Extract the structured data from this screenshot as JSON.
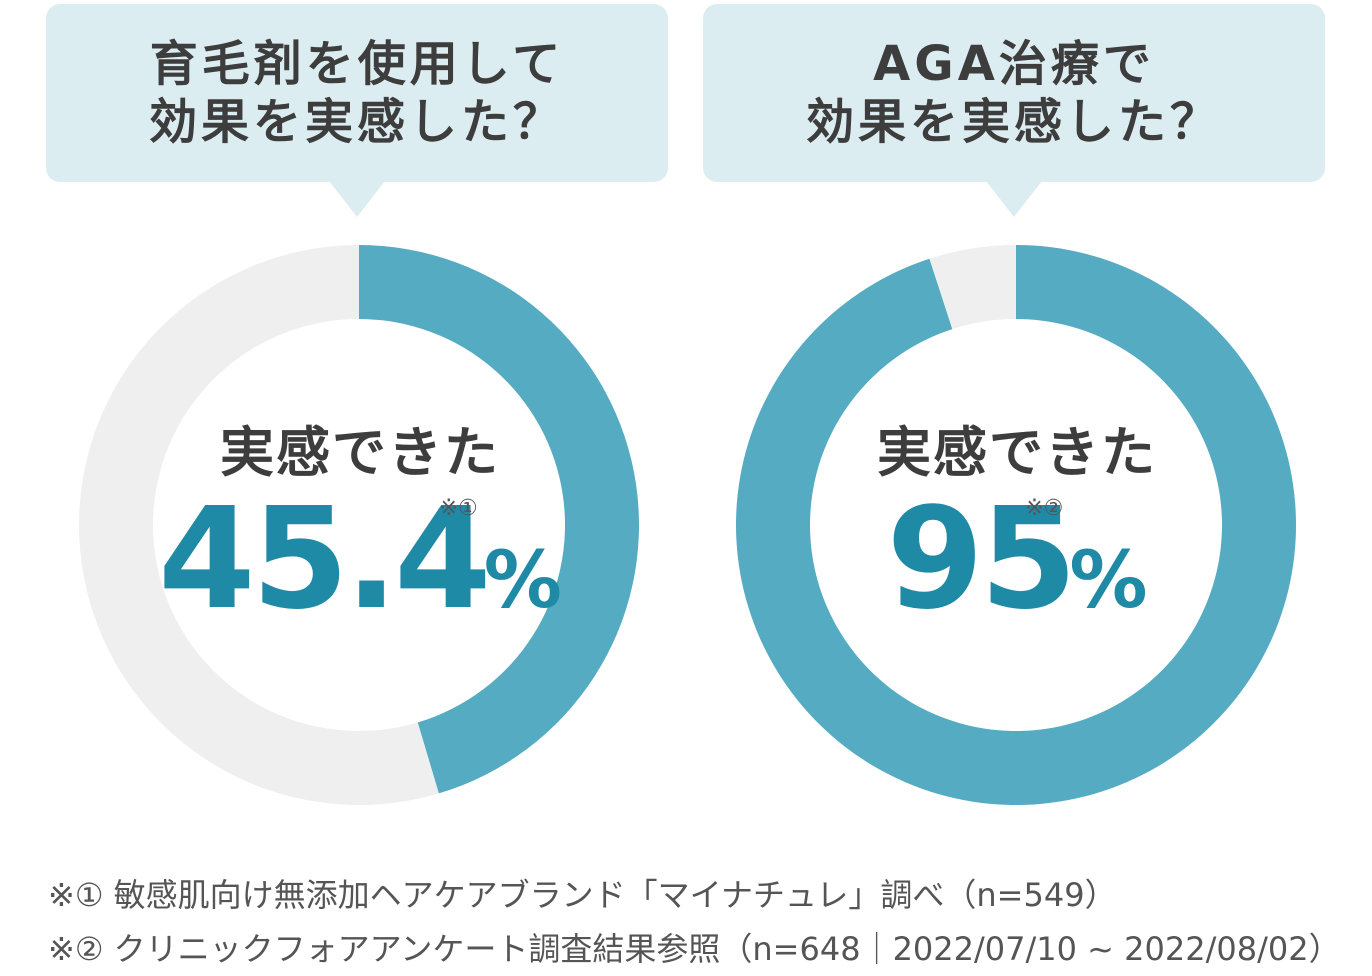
{
  "chart_data": [
    {
      "type": "pie",
      "title_lines": [
        "育毛剤を使用して",
        "効果を実感した？"
      ],
      "center_label": "実感できた",
      "value_text": "45.4",
      "percent_sign": "%",
      "footnote_ref": "※①",
      "slices": [
        {
          "label": "実感できた",
          "value": 45.4,
          "color": "#54abc2"
        },
        {
          "label": "",
          "value": 54.6,
          "color": "#efefef"
        }
      ]
    },
    {
      "type": "pie",
      "title_lines": [
        "AGA治療で",
        "効果を実感した？"
      ],
      "center_label": "実感できた",
      "value_text": "95",
      "percent_sign": "%",
      "footnote_ref": "※②",
      "slices": [
        {
          "label": "実感できた",
          "value": 95,
          "color": "#54abc2"
        },
        {
          "label": "",
          "value": 5,
          "color": "#efefef"
        }
      ]
    }
  ],
  "footnotes": [
    "※① 敏感肌向け無添加ヘアケアブランド「マイナチュレ」調べ（n=549）",
    "※② クリニックフォアアンケート調査結果参照（n=648｜2022/07/10 ~ 2022/08/02）"
  ]
}
